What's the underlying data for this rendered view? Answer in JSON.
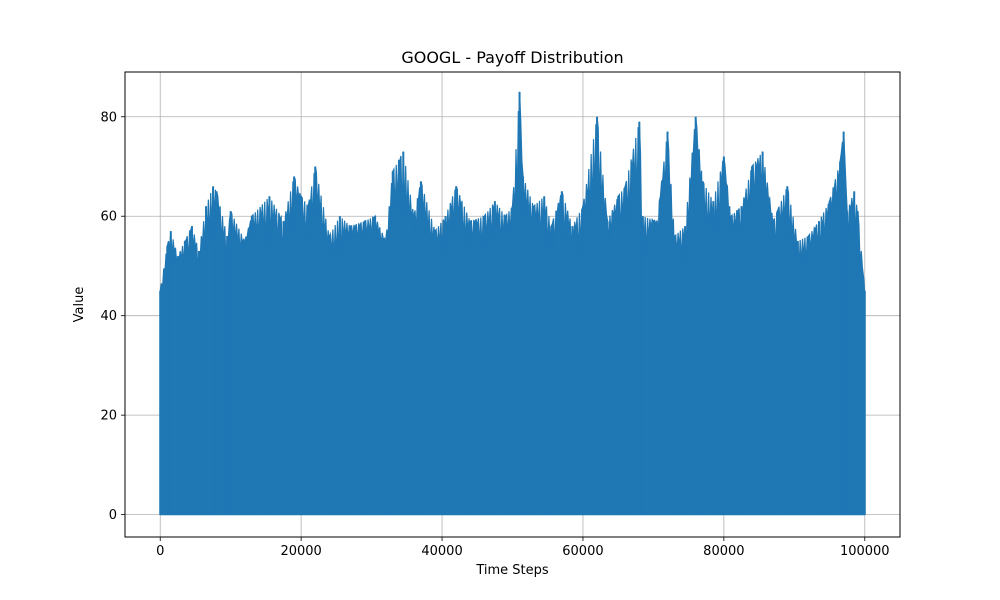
{
  "chart_data": {
    "type": "line",
    "title": "GOOGL - Payoff Distribution",
    "xlabel": "Time Steps",
    "ylabel": "Value",
    "xlim": [
      -5000,
      105000
    ],
    "ylim": [
      -4.5,
      89
    ],
    "xticks": [
      0,
      20000,
      40000,
      60000,
      80000,
      100000
    ],
    "yticks": [
      0,
      20,
      40,
      60,
      80
    ],
    "grid": true,
    "series": [
      {
        "color": "#1f77b4",
        "baseline": 0,
        "x_range": [
          0,
          100000
        ],
        "envelope_x": [
          0,
          1000,
          1500,
          2500,
          3500,
          4500,
          5500,
          6500,
          7500,
          8000,
          9500,
          10000,
          12000,
          13000,
          15500,
          17500,
          19000,
          20000,
          21000,
          22000,
          24000,
          25500,
          27000,
          29000,
          30500,
          32000,
          33000,
          34500,
          36000,
          37000,
          39000,
          40500,
          42000,
          44000,
          46000,
          47500,
          49000,
          50000,
          51000,
          51500,
          53000,
          54500,
          55500,
          57000,
          58500,
          60000,
          62000,
          63500,
          65000,
          66000,
          68000,
          68500,
          70500,
          72000,
          73000,
          74500,
          76000,
          77000,
          78500,
          80000,
          81000,
          82500,
          84000,
          85500,
          87000,
          89000,
          90500,
          92000,
          93500,
          95000,
          96500,
          97000,
          97500,
          98500,
          99000,
          100000
        ],
        "envelope_y": [
          45,
          54,
          57,
          52,
          55,
          58,
          53,
          62,
          66,
          65,
          56,
          61,
          55,
          60,
          64,
          59,
          68,
          64,
          62,
          70,
          56,
          60,
          58,
          59,
          60,
          55,
          69,
          73,
          60,
          67,
          57,
          60,
          66,
          59,
          60,
          63,
          60,
          62,
          85,
          68,
          62,
          64,
          58,
          65,
          58,
          62,
          80,
          59,
          64,
          66,
          79,
          60,
          59,
          77,
          56,
          58,
          80,
          67,
          63,
          72,
          60,
          62,
          70,
          73,
          59,
          66,
          55,
          56,
          59,
          63,
          71,
          77,
          61,
          65,
          61,
          45
        ],
        "trough_y": 42
      }
    ]
  }
}
